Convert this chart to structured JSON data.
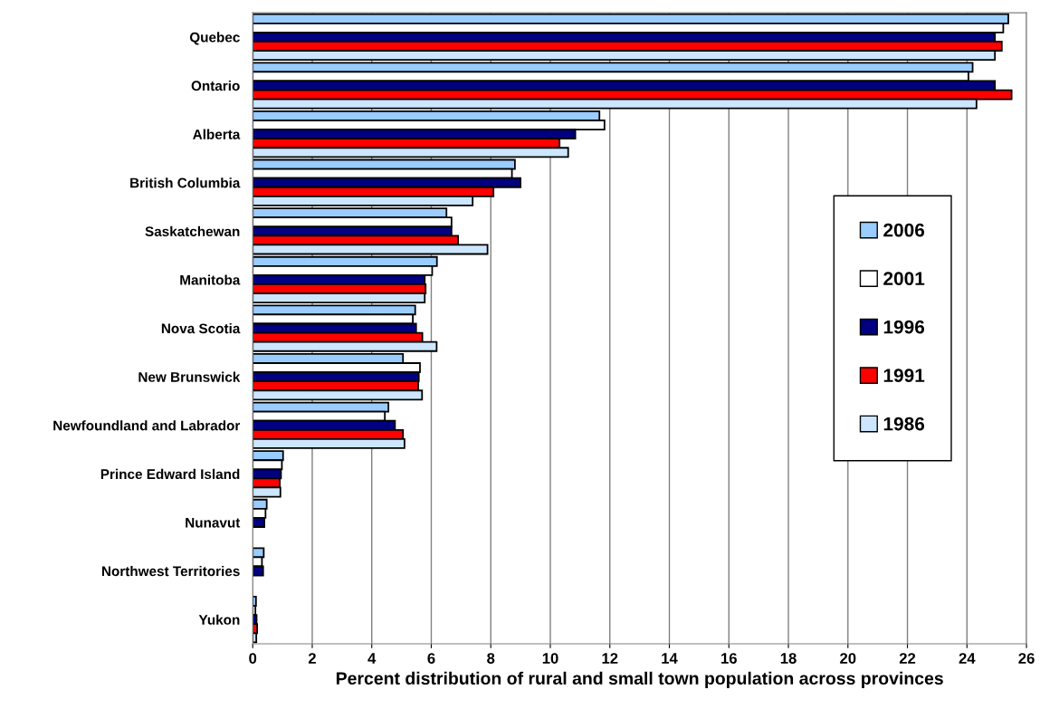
{
  "chart_data": {
    "type": "bar",
    "orientation": "horizontal",
    "xlabel": "Percent distribution of rural and small town population across provinces",
    "categories": [
      "Quebec",
      "Ontario",
      "Alberta",
      "British Columbia",
      "Saskatchewan",
      "Manitoba",
      "Nova Scotia",
      "New Brunswick",
      "Newfoundland and Labrador",
      "Prince Edward Island",
      "Nunavut",
      "Northwest Territories",
      "Yukon"
    ],
    "series": [
      {
        "name": "2006",
        "color": "#99ccff",
        "values": [
          25.39,
          24.19,
          11.65,
          8.81,
          6.51,
          6.19,
          5.46,
          5.05,
          4.56,
          1.02,
          0.47,
          0.37,
          0.11
        ]
      },
      {
        "name": "2001",
        "color": "#ffffff",
        "values": [
          25.22,
          24.05,
          11.82,
          8.71,
          6.68,
          6.03,
          5.38,
          5.62,
          4.44,
          0.98,
          0.43,
          0.31,
          0.09
        ]
      },
      {
        "name": "1996",
        "color": "#000080",
        "values": [
          24.94,
          24.94,
          10.84,
          9.0,
          6.68,
          5.78,
          5.49,
          5.58,
          4.78,
          0.95,
          0.39,
          0.35,
          0.13
        ]
      },
      {
        "name": "1991",
        "color": "#ff0000",
        "values": [
          25.17,
          25.5,
          10.31,
          8.09,
          6.9,
          5.81,
          5.7,
          5.56,
          5.05,
          0.91,
          null,
          null,
          0.15
        ]
      },
      {
        "name": "1986",
        "color": "#cce6ff",
        "values": [
          24.94,
          24.32,
          10.6,
          7.39,
          7.89,
          5.78,
          6.18,
          5.69,
          5.1,
          0.93,
          null,
          null,
          0.12
        ]
      }
    ],
    "xlim": [
      0,
      26
    ],
    "xticks": [
      0,
      2,
      4,
      6,
      8,
      10,
      12,
      14,
      16,
      18,
      20,
      22,
      24,
      26
    ],
    "grid": "x",
    "legend": "right"
  }
}
